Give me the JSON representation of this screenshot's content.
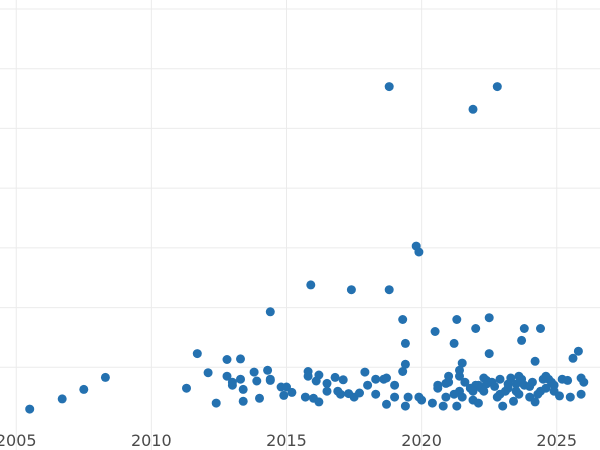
{
  "chart_data": {
    "type": "scatter",
    "title": "",
    "xlabel": "",
    "ylabel": "",
    "xlim": [
      2004.4,
      2026.6
    ],
    "ylim": [
      0,
      7
    ],
    "grid": true,
    "x_ticks": [
      2005,
      2010,
      2015,
      2020,
      2025
    ],
    "x_tick_labels": [
      "2005",
      "2010",
      "2015",
      "2020",
      "2025"
    ],
    "y_gridlines": [
      1,
      2,
      3,
      4,
      5,
      6,
      7
    ],
    "colors": {
      "point": "#2471b0",
      "grid": "#ebebeb",
      "tick_text": "#4a4a4a",
      "background": "#ffffff"
    },
    "series": [
      {
        "points": [
          [
            2005.5,
            0.3
          ],
          [
            2006.7,
            0.47
          ],
          [
            2007.5,
            0.63
          ],
          [
            2008.3,
            0.83
          ],
          [
            2011.3,
            0.65
          ],
          [
            2011.7,
            1.23
          ],
          [
            2012.1,
            0.91
          ],
          [
            2012.4,
            0.4
          ],
          [
            2012.8,
            1.13
          ],
          [
            2012.8,
            0.85
          ],
          [
            2013.0,
            0.75
          ],
          [
            2013.0,
            0.7
          ],
          [
            2013.3,
            1.14
          ],
          [
            2013.3,
            0.8
          ],
          [
            2013.4,
            0.63
          ],
          [
            2013.4,
            0.43
          ],
          [
            2013.8,
            0.92
          ],
          [
            2013.9,
            0.77
          ],
          [
            2014.0,
            0.48
          ],
          [
            2014.3,
            0.95
          ],
          [
            2014.4,
            0.8
          ],
          [
            2014.4,
            0.78
          ],
          [
            2014.4,
            1.93
          ],
          [
            2014.8,
            0.67
          ],
          [
            2014.9,
            0.53
          ],
          [
            2015.0,
            0.67
          ],
          [
            2015.2,
            0.58
          ],
          [
            2015.7,
            0.5
          ],
          [
            2015.8,
            0.93
          ],
          [
            2015.8,
            0.85
          ],
          [
            2015.9,
            2.38
          ],
          [
            2016.0,
            0.48
          ],
          [
            2016.1,
            0.77
          ],
          [
            2016.2,
            0.87
          ],
          [
            2016.2,
            0.42
          ],
          [
            2016.5,
            0.6
          ],
          [
            2016.5,
            0.73
          ],
          [
            2016.8,
            0.83
          ],
          [
            2016.9,
            0.6
          ],
          [
            2017.0,
            0.55
          ],
          [
            2017.1,
            0.79
          ],
          [
            2017.3,
            0.56
          ],
          [
            2017.4,
            2.3
          ],
          [
            2017.5,
            0.5
          ],
          [
            2017.7,
            0.57
          ],
          [
            2017.9,
            0.92
          ],
          [
            2018.0,
            0.7
          ],
          [
            2018.3,
            0.8
          ],
          [
            2018.3,
            0.55
          ],
          [
            2018.6,
            0.8
          ],
          [
            2018.7,
            0.38
          ],
          [
            2018.7,
            0.82
          ],
          [
            2018.8,
            2.3
          ],
          [
            2018.8,
            5.7
          ],
          [
            2019.0,
            0.7
          ],
          [
            2019.0,
            0.5
          ],
          [
            2019.3,
            1.8
          ],
          [
            2019.3,
            0.93
          ],
          [
            2019.4,
            1.4
          ],
          [
            2019.4,
            1.05
          ],
          [
            2019.4,
            0.35
          ],
          [
            2019.5,
            0.5
          ],
          [
            2019.8,
            3.03
          ],
          [
            2019.9,
            2.93
          ],
          [
            2019.9,
            0.5
          ],
          [
            2020.4,
            0.4
          ],
          [
            2020.5,
            1.6
          ],
          [
            2020.6,
            0.65
          ],
          [
            2020.6,
            0.7
          ],
          [
            2020.8,
            0.35
          ],
          [
            2020.9,
            0.73
          ],
          [
            2021.0,
            0.75
          ],
          [
            2021.0,
            0.85
          ],
          [
            2021.2,
            1.4
          ],
          [
            2021.3,
            0.35
          ],
          [
            2021.3,
            1.8
          ],
          [
            2021.4,
            0.6
          ],
          [
            2021.4,
            0.85
          ],
          [
            2021.4,
            0.95
          ],
          [
            2021.5,
            1.07
          ],
          [
            2021.5,
            0.5
          ],
          [
            2021.6,
            0.75
          ],
          [
            2021.8,
            0.65
          ],
          [
            2021.9,
            5.32
          ],
          [
            2021.9,
            0.45
          ],
          [
            2022.0,
            1.65
          ],
          [
            2022.0,
            0.7
          ],
          [
            2022.1,
            0.7
          ],
          [
            2022.1,
            0.4
          ],
          [
            2022.2,
            0.65
          ],
          [
            2022.3,
            0.82
          ],
          [
            2022.4,
            0.78
          ],
          [
            2022.4,
            0.72
          ],
          [
            2022.5,
            1.23
          ],
          [
            2022.5,
            1.83
          ],
          [
            2022.6,
            0.75
          ],
          [
            2022.7,
            0.68
          ],
          [
            2022.8,
            0.5
          ],
          [
            2022.8,
            5.7
          ],
          [
            2022.9,
            0.55
          ],
          [
            2023.1,
            0.6
          ],
          [
            2023.2,
            0.72
          ],
          [
            2023.2,
            0.65
          ],
          [
            2023.3,
            0.82
          ],
          [
            2023.4,
            0.43
          ],
          [
            2023.5,
            0.6
          ],
          [
            2023.5,
            0.72
          ],
          [
            2023.6,
            0.85
          ],
          [
            2023.7,
            1.45
          ],
          [
            2023.7,
            0.8
          ],
          [
            2023.8,
            0.7
          ],
          [
            2023.8,
            1.65
          ],
          [
            2024.0,
            0.5
          ],
          [
            2024.0,
            0.68
          ],
          [
            2024.1,
            0.75
          ],
          [
            2024.2,
            1.1
          ],
          [
            2024.2,
            0.42
          ],
          [
            2024.3,
            0.55
          ],
          [
            2024.4,
            0.6
          ],
          [
            2024.4,
            1.65
          ],
          [
            2024.5,
            0.8
          ],
          [
            2024.6,
            0.65
          ],
          [
            2024.7,
            0.8
          ],
          [
            2024.8,
            0.75
          ],
          [
            2024.9,
            0.7
          ],
          [
            2024.9,
            0.6
          ],
          [
            2025.2,
            0.8
          ],
          [
            2025.4,
            0.78
          ],
          [
            2025.5,
            0.5
          ],
          [
            2025.6,
            1.15
          ],
          [
            2025.8,
            1.27
          ],
          [
            2025.9,
            0.82
          ],
          [
            2025.9,
            0.55
          ],
          [
            2026.0,
            0.75
          ],
          [
            2020.0,
            0.45
          ],
          [
            2020.9,
            0.5
          ],
          [
            2021.2,
            0.55
          ],
          [
            2021.9,
            0.6
          ],
          [
            2022.9,
            0.8
          ],
          [
            2023.0,
            0.35
          ],
          [
            2023.6,
            0.55
          ],
          [
            2024.6,
            0.85
          ],
          [
            2025.1,
            0.52
          ],
          [
            2022.3,
            0.6
          ]
        ]
      }
    ]
  }
}
